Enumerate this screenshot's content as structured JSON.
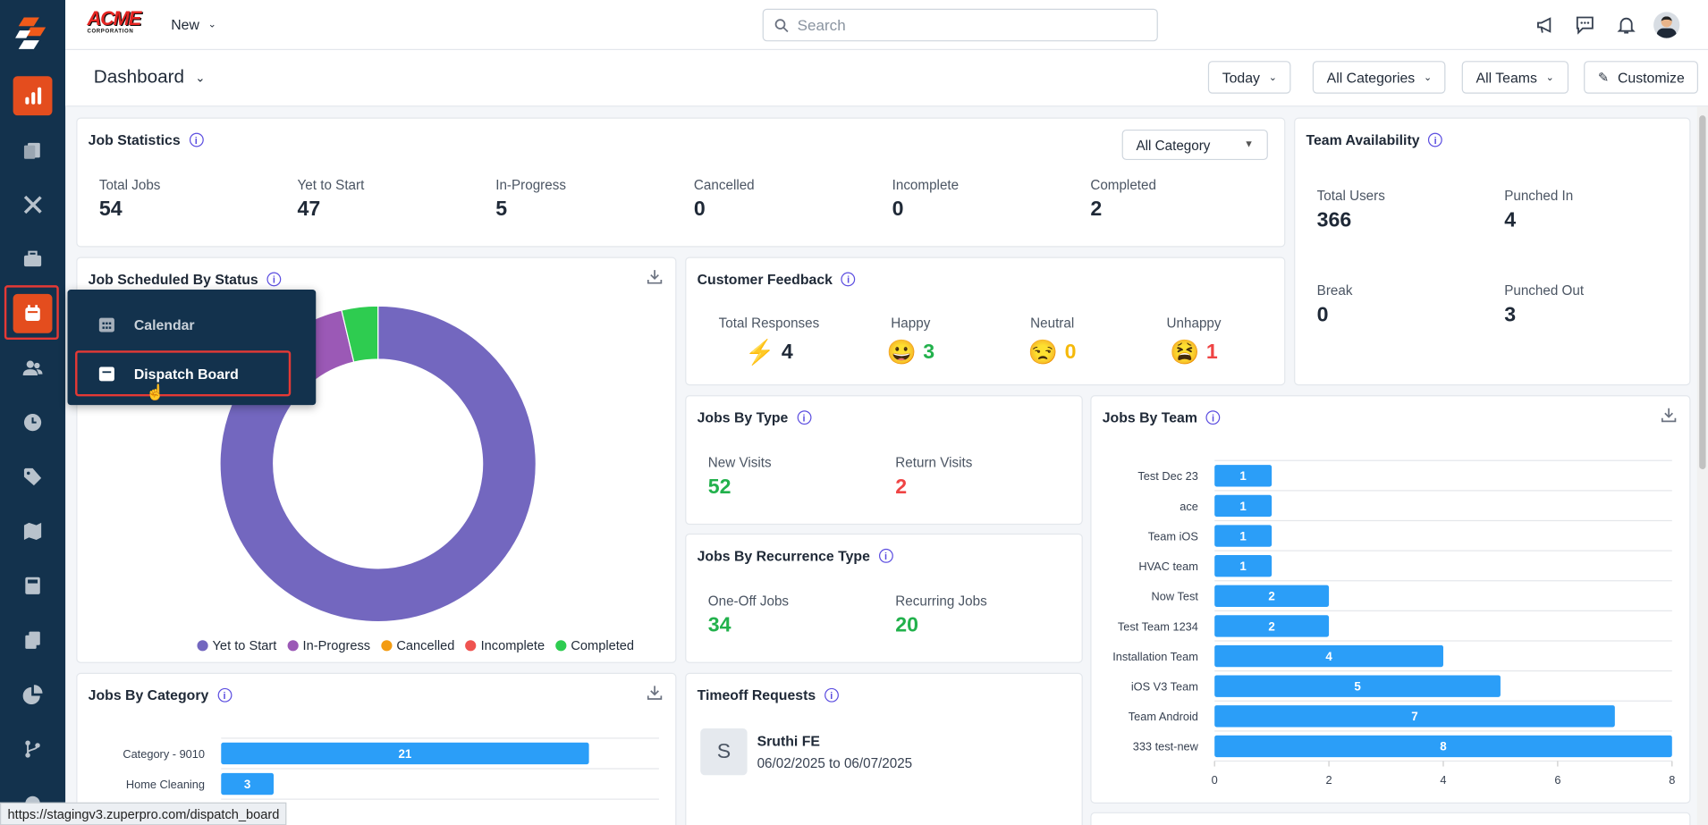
{
  "app": {
    "logo_text": "ACME CORPORATION",
    "new_label": "New",
    "search_placeholder": "Search"
  },
  "header": {
    "title": "Dashboard",
    "filters": [
      "Today",
      "All Categories",
      "All Teams"
    ],
    "customize_label": "Customize"
  },
  "sidebar_menu": {
    "items": [
      {
        "label": "Calendar",
        "icon": "calendar-grid-icon"
      },
      {
        "label": "Dispatch Board",
        "icon": "calendar-icon"
      }
    ]
  },
  "job_statistics": {
    "title": "Job Statistics",
    "category_select": "All Category",
    "stats": [
      {
        "label": "Total Jobs",
        "value": "54"
      },
      {
        "label": "Yet to Start",
        "value": "47"
      },
      {
        "label": "In-Progress",
        "value": "5"
      },
      {
        "label": "Cancelled",
        "value": "0"
      },
      {
        "label": "Incomplete",
        "value": "0"
      },
      {
        "label": "Completed",
        "value": "2"
      }
    ]
  },
  "team_availability": {
    "title": "Team Availability",
    "stats": [
      {
        "label": "Total Users",
        "value": "366"
      },
      {
        "label": "Punched In",
        "value": "4"
      },
      {
        "label": "Break",
        "value": "0"
      },
      {
        "label": "Punched Out",
        "value": "3"
      }
    ]
  },
  "customer_feedback": {
    "title": "Customer Feedback",
    "items": [
      {
        "label": "Total Responses",
        "value": "4",
        "icon": "lightning-icon",
        "color": "#1f2937"
      },
      {
        "label": "Happy",
        "value": "3",
        "icon": "happy-face-icon",
        "color": "#22b14c"
      },
      {
        "label": "Neutral",
        "value": "0",
        "icon": "neutral-face-icon",
        "color": "#f5b90a"
      },
      {
        "label": "Unhappy",
        "value": "1",
        "icon": "unhappy-face-icon",
        "color": "#ef4444"
      }
    ]
  },
  "jobs_by_type": {
    "title": "Jobs By Type",
    "items": [
      {
        "label": "New Visits",
        "value": "52",
        "color": "#22b14c"
      },
      {
        "label": "Return Visits",
        "value": "2",
        "color": "#ef4444"
      }
    ]
  },
  "jobs_by_recurrence": {
    "title": "Jobs By Recurrence Type",
    "items": [
      {
        "label": "One-Off Jobs",
        "value": "34",
        "color": "#22b14c"
      },
      {
        "label": "Recurring Jobs",
        "value": "20",
        "color": "#22b14c"
      }
    ]
  },
  "timeoff": {
    "title": "Timeoff Requests",
    "avatar_letter": "S",
    "name": "Sruthi FE",
    "dates": "06/02/2025 to 06/07/2025"
  },
  "status_url": "https://stagingv3.zuperpro.com/dispatch_board",
  "chart_data": [
    {
      "type": "pie",
      "title": "Job Scheduled By Status",
      "donut": true,
      "categories": [
        "Yet to Start",
        "In-Progress",
        "Cancelled",
        "Incomplete",
        "Completed"
      ],
      "values": [
        47,
        5,
        0,
        0,
        2
      ],
      "colors": [
        "#7367bf",
        "#9b59b6",
        "#f39c12",
        "#ef5350",
        "#2ecc50"
      ],
      "legend": "bottom"
    },
    {
      "type": "bar",
      "orientation": "horizontal",
      "title": "Jobs By Team",
      "categories": [
        "Test Dec 23",
        "ace",
        "Team iOS",
        "HVAC team",
        "Now Test",
        "Test Team 1234",
        "Installation Team",
        "iOS V3 Team",
        "Team Android",
        "333 test-new"
      ],
      "values": [
        1,
        1,
        1,
        1,
        2,
        2,
        4,
        5,
        7,
        8
      ],
      "xlim": [
        0,
        8
      ],
      "xticks": [
        "0",
        "2",
        "4",
        "6",
        "8"
      ]
    },
    {
      "type": "bar",
      "orientation": "horizontal",
      "title": "Jobs By Category",
      "categories": [
        "Category - 9010",
        "Home Cleaning"
      ],
      "values": [
        21,
        3
      ],
      "xlim": [
        0,
        25
      ]
    }
  ]
}
